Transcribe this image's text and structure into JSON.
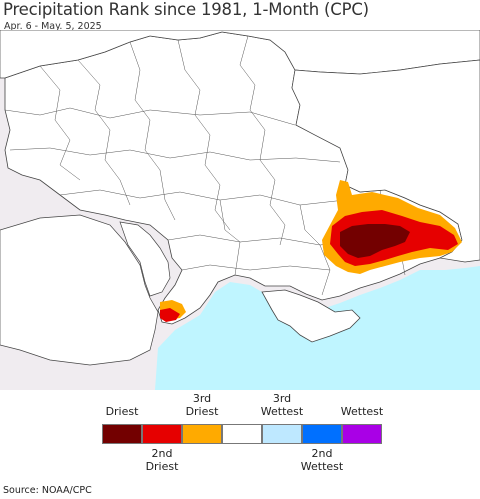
{
  "title": "Precipitation Rank since 1981, 1-Month (CPC)",
  "subtitle": "Apr. 6 - May. 5, 2025",
  "source": "Source: NOAA/CPC",
  "legend": {
    "top_labels": [
      "Driest",
      "3rd\nDriest",
      "3rd\nWettest",
      "Wettest"
    ],
    "bottom_labels": [
      "2nd\nDriest",
      "2nd\nWettest"
    ],
    "colors": [
      "#730000",
      "#e60000",
      "#ffaa00",
      "#ffffff",
      "#bee8ff",
      "#0070ff",
      "#a900e6"
    ],
    "categories": [
      "Driest",
      "2nd Driest",
      "3rd Driest",
      "Normal",
      "3rd Wettest",
      "2nd Wettest",
      "Wettest"
    ]
  },
  "map_colors": {
    "land_region": "#ffffff",
    "outside_land": "#f0ecf0",
    "sea": "#bff5ff",
    "borders": "#444444"
  }
}
